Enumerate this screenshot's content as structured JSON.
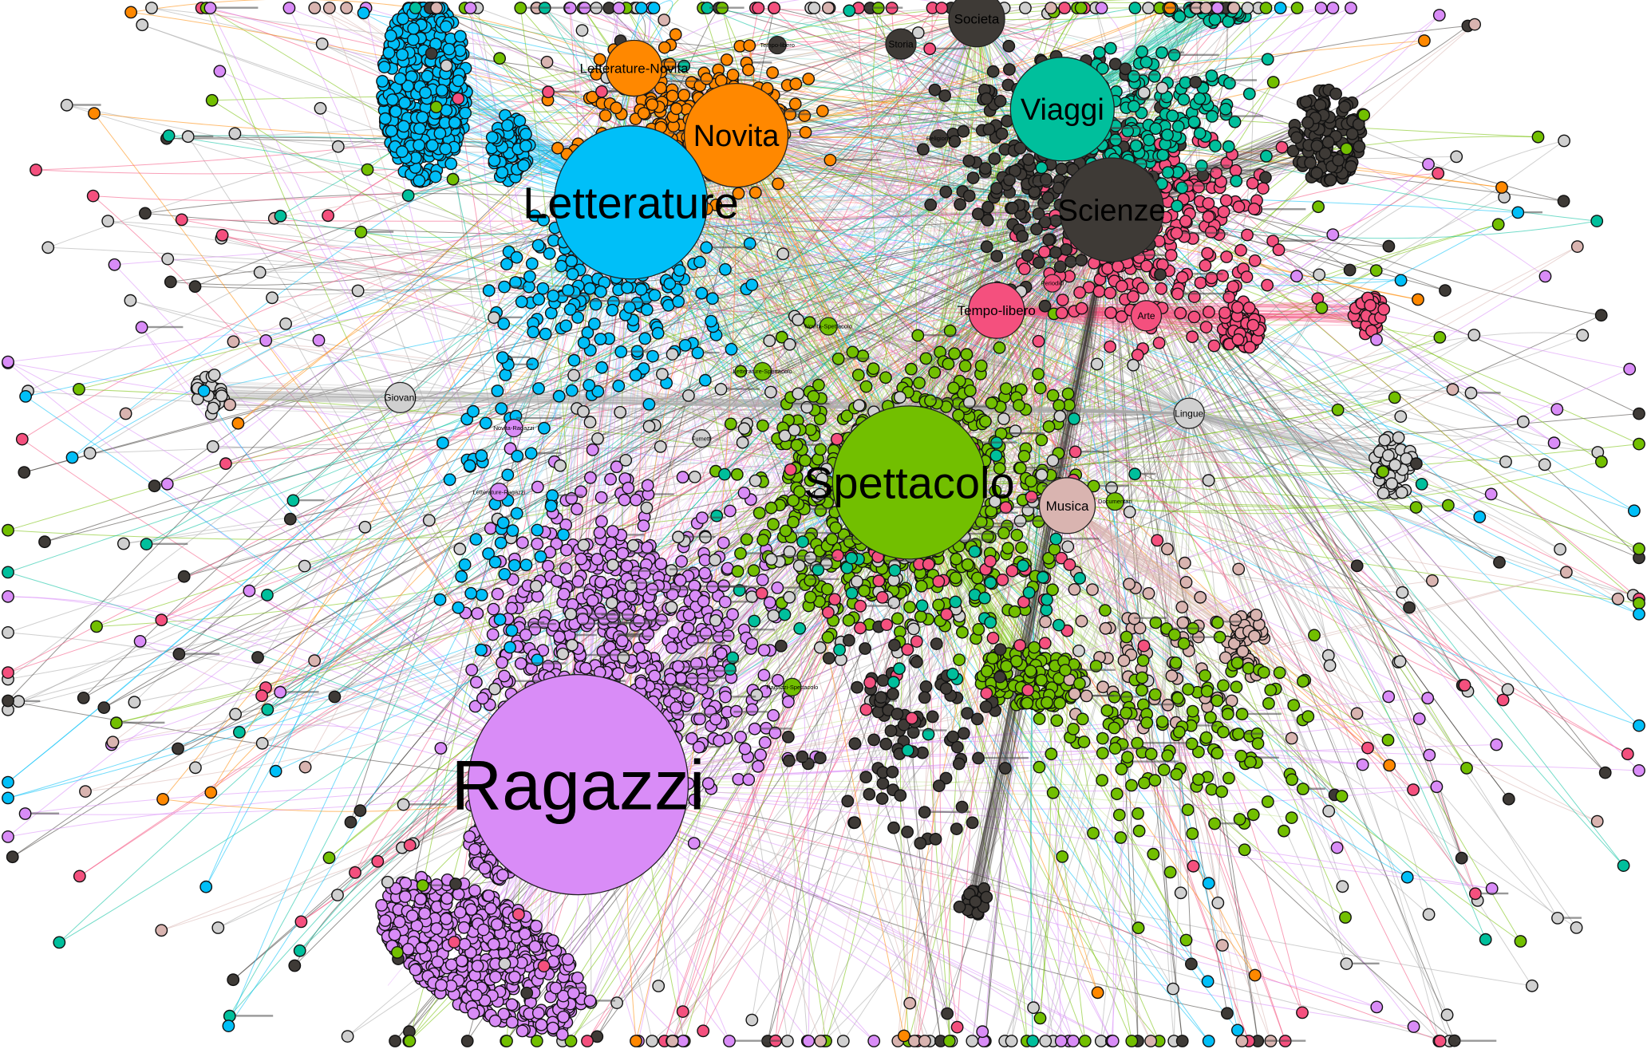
{
  "hubs": [
    {
      "id": "ragazzi",
      "label": "Ragazzi",
      "size": "xl",
      "color": "#d98cf7",
      "col": 0.351,
      "row": 0.748
    },
    {
      "id": "letterature",
      "label": "Letterature",
      "size": "lg",
      "color": "#00bff8",
      "col": 0.383,
      "row": 0.193
    },
    {
      "id": "spettacolo",
      "label": "Spettacolo",
      "size": "lg",
      "color": "#72bf00",
      "col": 0.552,
      "row": 0.46
    },
    {
      "id": "novita",
      "label": "Novita",
      "size": "md",
      "color": "#ff8800",
      "col": 0.447,
      "row": 0.129
    },
    {
      "id": "viaggi",
      "label": "Viaggi",
      "size": "md",
      "color": "#00bf9c",
      "col": 0.645,
      "row": 0.104
    },
    {
      "id": "scienze",
      "label": "Scienze",
      "size": "md",
      "color": "#3e3a36",
      "col": 0.675,
      "row": 0.2
    },
    {
      "id": "letterature-novita",
      "label": "Letterature-Novita",
      "size": "sm",
      "color": "#ff8800",
      "col": 0.385,
      "row": 0.065
    },
    {
      "id": "societa",
      "label": "Societa",
      "size": "sm",
      "color": "#3e3a36",
      "col": 0.593,
      "row": 0.018
    },
    {
      "id": "storia",
      "label": "Storia",
      "size": "xs",
      "color": "#3e3a36",
      "col": 0.547,
      "row": 0.042
    },
    {
      "id": "tempo-libero",
      "label": "Tempo-libero",
      "size": "sm",
      "color": "#f4507e",
      "col": 0.605,
      "row": 0.296
    },
    {
      "id": "arte",
      "label": "Arte",
      "size": "xs",
      "color": "#f4507e",
      "col": 0.696,
      "row": 0.301
    },
    {
      "id": "lingue",
      "label": "Lingue",
      "size": "xs",
      "color": "#d0d0d0",
      "col": 0.722,
      "row": 0.394
    },
    {
      "id": "musica",
      "label": "Musica",
      "size": "sm",
      "color": "#d9b4b0",
      "col": 0.648,
      "row": 0.482
    },
    {
      "id": "documentari",
      "label": "Documentari",
      "size": "tiny",
      "color": "#72bf00",
      "col": 0.677,
      "row": 0.478
    },
    {
      "id": "giovani",
      "label": "Giovani",
      "size": "xs",
      "color": "#d0d0d0",
      "col": 0.243,
      "row": 0.379
    },
    {
      "id": "fumetti",
      "label": "Fumetti",
      "size": "tiny",
      "color": "#d0d0d0",
      "col": 0.426,
      "row": 0.418
    },
    {
      "id": "ragazzi-spettacolo",
      "label": "Ragazzi-Spettacolo",
      "size": "tiny",
      "color": "#72bf00",
      "col": 0.481,
      "row": 0.655
    },
    {
      "id": "letterature-ragazzi",
      "label": "Letterature-Ragazzi",
      "size": "tiny",
      "color": "#d98cf7",
      "col": 0.303,
      "row": 0.469
    },
    {
      "id": "novita-ragazzi",
      "label": "Novita-Ragazzi",
      "size": "tiny",
      "color": "#d98cf7",
      "col": 0.312,
      "row": 0.408
    },
    {
      "id": "letterature-spettacolo",
      "label": "Letterature-Spettacolo",
      "size": "tiny",
      "color": "#72bf00",
      "col": 0.463,
      "row": 0.354
    },
    {
      "id": "novita-spettacolo",
      "label": "Novita-Spettacolo",
      "size": "tiny",
      "color": "#72bf00",
      "col": 0.503,
      "row": 0.311
    },
    {
      "id": "tempo-libero-viaggi",
      "label": "Tempo-libero",
      "size": "tiny",
      "color": "#3e3a36",
      "col": 0.472,
      "row": 0.043
    },
    {
      "id": "periodici",
      "label": "Periodici",
      "size": "tiny",
      "color": "#f4507e",
      "col": 0.639,
      "row": 0.27
    },
    {
      "id": "religione",
      "label": "Religione",
      "size": "tiny",
      "color": "#3e3a36",
      "col": 0.57,
      "row": 0.132
    }
  ],
  "clusters": [
    {
      "id": "letterature-blob",
      "color": "#00bff8",
      "col": 0.258,
      "row": 0.085,
      "rx": 0.026,
      "ry": 0.09,
      "count": 420
    },
    {
      "id": "letterature-blob-2",
      "color": "#00bff8",
      "col": 0.31,
      "row": 0.14,
      "rx": 0.012,
      "ry": 0.035,
      "count": 60
    },
    {
      "id": "ragazzi-blob",
      "color": "#d98cf7",
      "col": 0.292,
      "row": 0.91,
      "rx": 0.07,
      "ry": 0.055,
      "count": 520,
      "tilt": 32
    },
    {
      "id": "ragazzi-blob-2",
      "color": "#d98cf7",
      "col": 0.3,
      "row": 0.81,
      "rx": 0.018,
      "ry": 0.03,
      "count": 70
    },
    {
      "id": "spettacolo-blob",
      "color": "#72bf00",
      "col": 0.625,
      "row": 0.647,
      "rx": 0.032,
      "ry": 0.03,
      "count": 150
    },
    {
      "id": "scienze-blob",
      "color": "#3e3a36",
      "col": 0.806,
      "row": 0.13,
      "rx": 0.022,
      "ry": 0.045,
      "count": 140
    },
    {
      "id": "arte-blob",
      "color": "#f4507e",
      "col": 0.754,
      "row": 0.31,
      "rx": 0.012,
      "ry": 0.025,
      "count": 50
    },
    {
      "id": "arte-blob-2",
      "color": "#f4507e",
      "col": 0.831,
      "row": 0.3,
      "rx": 0.01,
      "ry": 0.02,
      "count": 40
    },
    {
      "id": "lingue-blob",
      "color": "#d0d0d0",
      "col": 0.846,
      "row": 0.445,
      "rx": 0.012,
      "ry": 0.03,
      "count": 50
    },
    {
      "id": "musica-blob",
      "color": "#d9b4b0",
      "col": 0.756,
      "row": 0.61,
      "rx": 0.012,
      "ry": 0.025,
      "count": 40
    },
    {
      "id": "giovani-blob",
      "color": "#d0d0d0",
      "col": 0.128,
      "row": 0.375,
      "rx": 0.011,
      "ry": 0.02,
      "count": 25
    },
    {
      "id": "viaggi-blob",
      "color": "#00bf9c",
      "col": 0.735,
      "row": 0.01,
      "rx": 0.025,
      "ry": 0.012,
      "count": 40
    },
    {
      "id": "scienze-blob-2",
      "color": "#3e3a36",
      "col": 0.592,
      "row": 0.86,
      "rx": 0.01,
      "ry": 0.016,
      "count": 18
    }
  ],
  "palette": {
    "ragazzi": "#d98cf7",
    "letterature": "#00bff8",
    "spettacolo": "#72bf00",
    "novita": "#ff8800",
    "viaggi": "#00bf9c",
    "scienze": "#3e3a36",
    "tempo_libero": "#f4507e",
    "giovani": "#d0d0d0",
    "musica": "#d9b4b0",
    "background": "#ffffff"
  },
  "scatter": [
    {
      "color": "#d98cf7",
      "col": 0.38,
      "row": 0.62,
      "spreadX": 0.13,
      "spreadY": 0.22,
      "count": 650
    },
    {
      "color": "#72bf00",
      "col": 0.55,
      "row": 0.47,
      "spreadX": 0.13,
      "spreadY": 0.19,
      "count": 720
    },
    {
      "color": "#ff8800",
      "col": 0.42,
      "row": 0.12,
      "spreadX": 0.1,
      "spreadY": 0.1,
      "count": 260
    },
    {
      "color": "#00bff8",
      "col": 0.37,
      "row": 0.28,
      "spreadX": 0.1,
      "spreadY": 0.14,
      "count": 180
    },
    {
      "color": "#f4507e",
      "col": 0.7,
      "row": 0.22,
      "spreadX": 0.1,
      "spreadY": 0.14,
      "count": 280
    },
    {
      "color": "#3e3a36",
      "col": 0.64,
      "row": 0.16,
      "spreadX": 0.1,
      "spreadY": 0.14,
      "count": 220
    },
    {
      "color": "#00bf9c",
      "col": 0.7,
      "row": 0.12,
      "spreadX": 0.08,
      "spreadY": 0.1,
      "count": 140
    },
    {
      "color": "#d0d0d0",
      "col": 0.5,
      "row": 0.5,
      "spreadX": 0.3,
      "spreadY": 0.3,
      "count": 140
    },
    {
      "color": "#d9b4b0",
      "col": 0.7,
      "row": 0.62,
      "spreadX": 0.1,
      "spreadY": 0.12,
      "count": 70
    },
    {
      "color": "#3e3a36",
      "col": 0.55,
      "row": 0.7,
      "spreadX": 0.1,
      "spreadY": 0.15,
      "count": 90
    },
    {
      "color": "#72bf00",
      "col": 0.72,
      "row": 0.7,
      "spreadX": 0.12,
      "spreadY": 0.15,
      "count": 150
    },
    {
      "color": "#f4507e",
      "col": 0.58,
      "row": 0.55,
      "spreadX": 0.15,
      "spreadY": 0.2,
      "count": 60
    },
    {
      "color": "#00bf9c",
      "col": 0.55,
      "row": 0.55,
      "spreadX": 0.18,
      "spreadY": 0.25,
      "count": 50
    },
    {
      "color": "#00bff8",
      "col": 0.3,
      "row": 0.5,
      "spreadX": 0.06,
      "spreadY": 0.2,
      "count": 50
    }
  ],
  "periphery": [
    {
      "color": "#d0d0d0",
      "count": 120
    },
    {
      "color": "#3e3a36",
      "count": 70
    },
    {
      "color": "#f4507e",
      "count": 60
    },
    {
      "color": "#72bf00",
      "count": 70
    },
    {
      "color": "#d98cf7",
      "count": 70
    },
    {
      "color": "#d9b4b0",
      "count": 40
    },
    {
      "color": "#00bf9c",
      "count": 25
    },
    {
      "color": "#00bff8",
      "count": 25
    },
    {
      "color": "#ff8800",
      "count": 15
    }
  ]
}
